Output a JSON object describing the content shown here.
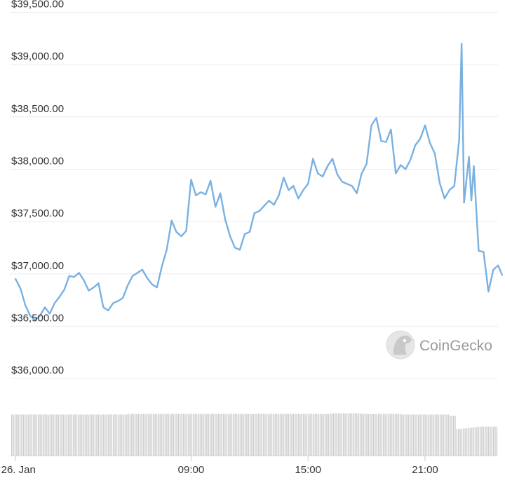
{
  "chart_data": {
    "type": "line",
    "series": [
      {
        "values": [
          [
            0.0,
            36950
          ],
          [
            0.25,
            36860
          ],
          [
            0.5,
            36700
          ],
          [
            0.75,
            36600
          ],
          [
            1.0,
            36560
          ],
          [
            1.25,
            36600
          ],
          [
            1.5,
            36680
          ],
          [
            1.75,
            36620
          ],
          [
            2.0,
            36720
          ],
          [
            2.25,
            36780
          ],
          [
            2.5,
            36850
          ],
          [
            2.75,
            36980
          ],
          [
            3.0,
            36970
          ],
          [
            3.25,
            37010
          ],
          [
            3.5,
            36940
          ],
          [
            3.75,
            36840
          ],
          [
            4.0,
            36870
          ],
          [
            4.25,
            36910
          ],
          [
            4.5,
            36680
          ],
          [
            4.75,
            36650
          ],
          [
            5.0,
            36720
          ],
          [
            5.25,
            36740
          ],
          [
            5.5,
            36770
          ],
          [
            5.75,
            36890
          ],
          [
            6.0,
            36980
          ],
          [
            6.25,
            37010
          ],
          [
            6.5,
            37040
          ],
          [
            6.75,
            36960
          ],
          [
            7.0,
            36900
          ],
          [
            7.25,
            36870
          ],
          [
            7.5,
            37070
          ],
          [
            7.75,
            37230
          ],
          [
            8.0,
            37510
          ],
          [
            8.25,
            37400
          ],
          [
            8.5,
            37360
          ],
          [
            8.75,
            37410
          ],
          [
            9.0,
            37900
          ],
          [
            9.25,
            37750
          ],
          [
            9.5,
            37780
          ],
          [
            9.75,
            37760
          ],
          [
            10.0,
            37890
          ],
          [
            10.25,
            37640
          ],
          [
            10.5,
            37770
          ],
          [
            10.75,
            37520
          ],
          [
            11.0,
            37360
          ],
          [
            11.25,
            37250
          ],
          [
            11.5,
            37230
          ],
          [
            11.75,
            37380
          ],
          [
            12.0,
            37400
          ],
          [
            12.25,
            37580
          ],
          [
            12.5,
            37600
          ],
          [
            12.75,
            37650
          ],
          [
            13.0,
            37700
          ],
          [
            13.25,
            37660
          ],
          [
            13.5,
            37750
          ],
          [
            13.75,
            37920
          ],
          [
            14.0,
            37800
          ],
          [
            14.25,
            37840
          ],
          [
            14.5,
            37720
          ],
          [
            14.75,
            37800
          ],
          [
            15.0,
            37860
          ],
          [
            15.25,
            38100
          ],
          [
            15.5,
            37960
          ],
          [
            15.75,
            37930
          ],
          [
            16.0,
            38030
          ],
          [
            16.25,
            38100
          ],
          [
            16.5,
            37950
          ],
          [
            16.75,
            37880
          ],
          [
            17.0,
            37860
          ],
          [
            17.25,
            37840
          ],
          [
            17.5,
            37770
          ],
          [
            17.75,
            37960
          ],
          [
            18.0,
            38050
          ],
          [
            18.25,
            38420
          ],
          [
            18.5,
            38490
          ],
          [
            18.75,
            38270
          ],
          [
            19.0,
            38260
          ],
          [
            19.25,
            38380
          ],
          [
            19.5,
            37960
          ],
          [
            19.75,
            38040
          ],
          [
            20.0,
            38000
          ],
          [
            20.25,
            38090
          ],
          [
            20.5,
            38230
          ],
          [
            20.75,
            38290
          ],
          [
            21.0,
            38420
          ],
          [
            21.25,
            38250
          ],
          [
            21.5,
            38150
          ],
          [
            21.75,
            37870
          ],
          [
            22.0,
            37720
          ],
          [
            22.25,
            37800
          ],
          [
            22.5,
            37840
          ],
          [
            22.75,
            38280
          ],
          [
            22.875,
            39200
          ],
          [
            23.0,
            37680
          ],
          [
            23.125,
            37900
          ],
          [
            23.25,
            38120
          ],
          [
            23.375,
            37700
          ],
          [
            23.5,
            38030
          ],
          [
            23.625,
            37620
          ],
          [
            23.75,
            37220
          ],
          [
            24.0,
            37210
          ],
          [
            24.25,
            36830
          ],
          [
            24.5,
            37040
          ],
          [
            24.75,
            37080
          ],
          [
            24.95,
            36990
          ]
        ]
      }
    ],
    "volume": [
      0.68,
      0.68,
      0.68,
      0.68,
      0.68,
      0.68,
      0.68,
      0.68,
      0.68,
      0.68,
      0.68,
      0.68,
      0.68,
      0.68,
      0.68,
      0.68,
      0.68,
      0.68,
      0.68,
      0.68,
      0.68,
      0.68,
      0.68,
      0.68,
      0.68,
      0.68,
      0.68,
      0.68,
      0.68,
      0.68,
      0.68,
      0.68,
      0.68,
      0.68,
      0.68,
      0.68,
      0.68,
      0.68,
      0.68,
      0.68,
      0.68,
      0.68,
      0.68,
      0.68,
      0.68,
      0.68,
      0.68,
      0.68,
      0.68,
      0.68,
      0.68,
      0.68,
      0.68,
      0.68,
      0.68,
      0.68,
      0.68,
      0.68,
      0.68,
      0.68,
      0.68,
      0.68,
      0.68,
      0.68,
      0.68,
      0.68,
      0.68,
      0.68,
      0.68,
      0.68,
      0.69,
      0.69,
      0.69,
      0.69,
      0.69,
      0.69,
      0.69,
      0.69,
      0.69,
      0.69,
      0.69,
      0.69,
      0.69,
      0.69,
      0.69,
      0.69,
      0.69,
      0.69,
      0.69,
      0.69,
      0.69,
      0.69,
      0.69,
      0.69,
      0.69,
      0.69,
      0.69,
      0.69,
      0.69,
      0.69,
      0.69,
      0.69,
      0.69,
      0.69,
      0.69,
      0.69,
      0.69,
      0.69,
      0.69,
      0.69,
      0.69,
      0.69,
      0.69,
      0.69,
      0.69,
      0.69,
      0.69,
      0.69,
      0.69,
      0.69,
      0.69,
      0.69,
      0.69,
      0.69,
      0.69,
      0.69,
      0.69,
      0.69,
      0.69,
      0.69,
      0.69,
      0.69,
      0.69,
      0.69,
      0.69,
      0.69,
      0.69,
      0.69,
      0.69,
      0.69,
      0.69,
      0.69,
      0.69,
      0.69,
      0.69,
      0.69,
      0.69,
      0.69,
      0.69,
      0.69,
      0.69,
      0.69,
      0.69,
      0.69,
      0.69,
      0.69,
      0.69,
      0.69,
      0.69,
      0.69,
      0.69,
      0.69,
      0.69,
      0.69,
      0.69,
      0.69,
      0.69,
      0.69,
      0.69,
      0.69,
      0.69,
      0.69,
      0.69,
      0.69,
      0.69,
      0.69,
      0.69,
      0.69,
      0.69,
      0.69,
      0.69,
      0.69,
      0.69,
      0.69,
      0.69,
      0.69,
      0.69,
      0.69,
      0.69,
      0.69,
      0.69,
      0.69,
      0.7,
      0.7,
      0.7,
      0.7,
      0.7,
      0.7,
      0.7,
      0.7,
      0.7,
      0.7,
      0.7,
      0.7,
      0.7,
      0.7,
      0.7,
      0.7,
      0.7,
      0.7,
      0.69,
      0.69,
      0.69,
      0.69,
      0.69,
      0.69,
      0.69,
      0.69,
      0.69,
      0.69,
      0.69,
      0.69,
      0.69,
      0.69,
      0.69,
      0.69,
      0.69,
      0.69,
      0.69,
      0.69,
      0.69,
      0.69,
      0.69,
      0.69,
      0.68,
      0.68,
      0.68,
      0.68,
      0.68,
      0.68,
      0.68,
      0.68,
      0.68,
      0.68,
      0.68,
      0.68,
      0.68,
      0.68,
      0.68,
      0.68,
      0.68,
      0.68,
      0.68,
      0.68,
      0.68,
      0.68,
      0.68,
      0.68,
      0.68,
      0.68,
      0.68,
      0.68,
      0.68,
      0.66,
      0.66,
      0.66,
      0.66,
      0.44,
      0.44,
      0.44,
      0.44,
      0.45,
      0.45,
      0.45,
      0.46,
      0.46,
      0.46,
      0.47,
      0.47,
      0.47,
      0.48,
      0.48,
      0.48,
      0.48,
      0.48,
      0.48,
      0.48,
      0.48,
      0.48,
      0.48,
      0.48,
      0.48
    ],
    "ylim": [
      35900,
      39550
    ],
    "y_ticks": [
      {
        "value": 36000,
        "label": "$36,000.00"
      },
      {
        "value": 36500,
        "label": "$36,500.00"
      },
      {
        "value": 37000,
        "label": "$37,000.00"
      },
      {
        "value": 37500,
        "label": "$37,500.00"
      },
      {
        "value": 38000,
        "label": "$38,000.00"
      },
      {
        "value": 38500,
        "label": "$38,500.00"
      },
      {
        "value": 39000,
        "label": "$39,000.00"
      },
      {
        "value": 39500,
        "label": "$39,500.00"
      }
    ],
    "x_ticks": [
      {
        "value": 0,
        "label": "26. Jan"
      },
      {
        "value": 9,
        "label": "09:00"
      },
      {
        "value": 15,
        "label": "15:00"
      },
      {
        "value": 21,
        "label": "21:00"
      }
    ],
    "xlim": [
      -0.8,
      25.1
    ],
    "line_color": "#79b1e3",
    "volume_color": "#cfcfcf",
    "grid": true,
    "grid_color": "#ececec"
  },
  "watermark": {
    "text": "CoinGecko"
  }
}
